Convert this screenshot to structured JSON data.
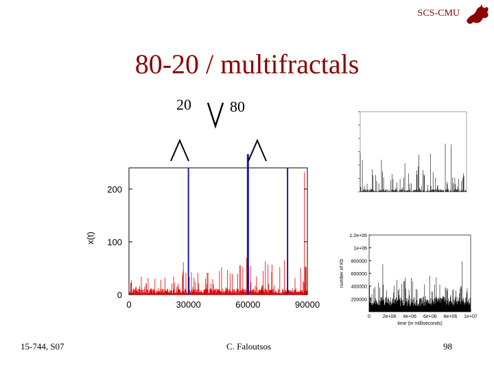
{
  "slide": {
    "header": "SCS-CMU",
    "title": "80-20 / multifractals",
    "label_20": "20",
    "label_80": "80",
    "footer_left": "15-744, S07",
    "footer_center": "C. Faloutsos",
    "page_number": "98"
  },
  "colors": {
    "title": "#8b0000",
    "trace": "#e00000",
    "marker": "#1a1aa6"
  },
  "chart_data": [
    {
      "type": "bar",
      "title": "",
      "xlabel": "",
      "ylabel": "x(t)",
      "xlim": [
        0,
        90000
      ],
      "ylim": [
        0,
        240
      ],
      "x_ticks": [
        "0",
        "30000",
        "60000",
        "90000"
      ],
      "y_ticks": [
        "0",
        "100",
        "200"
      ],
      "grid": false,
      "legend": "none",
      "vertical_markers": [
        30000,
        60000,
        80000
      ]
    },
    {
      "type": "line",
      "ylabel": "number of Kb",
      "xlabel": "time (in milliseconds)",
      "x_ticks": [
        "0",
        "2e+06",
        "4e+06",
        "6e+06",
        "8e+06",
        "1e+07"
      ],
      "y_ticks": [
        "200000",
        "400000",
        "600000",
        "800000",
        "1e+06",
        "1.2e+06"
      ],
      "grid": false
    }
  ]
}
